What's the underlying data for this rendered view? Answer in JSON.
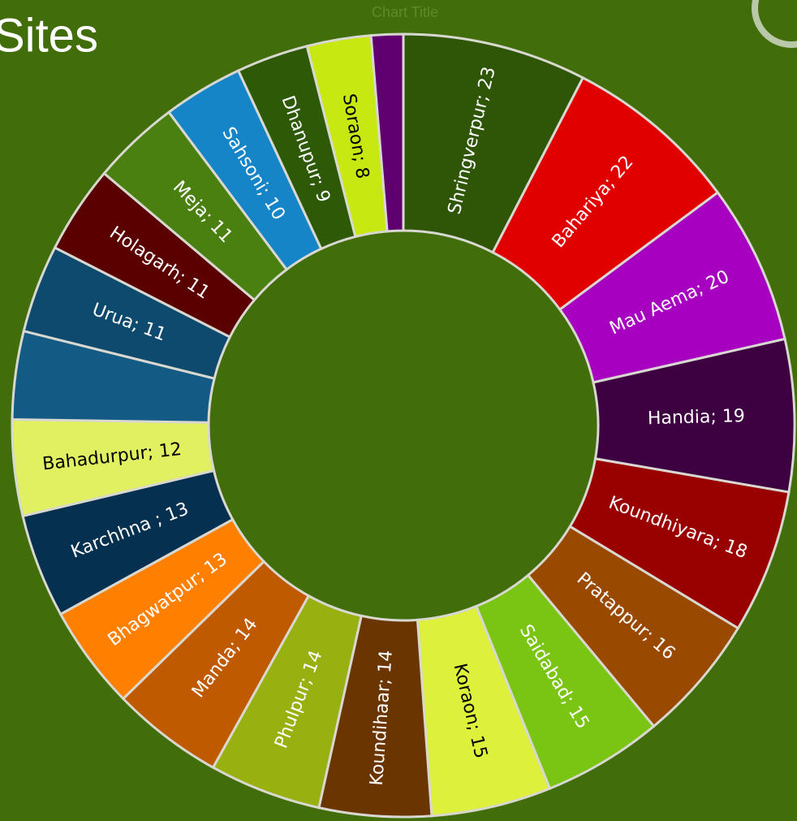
{
  "chart_data": {
    "type": "doughnut",
    "title": "Sites",
    "subtitle": "Chart Title",
    "categories": [
      "Shringverpur",
      "Bahariya",
      "Mau Aema",
      "Handia",
      "Koundhiyara",
      "Pratappur",
      "Saidabad",
      "Koraon",
      "Koundihaar",
      "Phulpur",
      "Manda",
      "Bhagwatpur",
      "Karchhna",
      "Bahadurpur",
      null,
      "Urua",
      "Holagarh",
      "Meja",
      "Sahsoni",
      "Dhanupur",
      "Soraon",
      null
    ],
    "values": [
      23,
      22,
      20,
      19,
      18,
      16,
      15,
      15,
      14,
      14,
      14,
      13,
      13,
      12,
      11,
      11,
      11,
      11,
      10,
      9,
      8,
      4
    ],
    "value_labels": [
      "Shringverpur; 23",
      "Bahariya; 22",
      "Mau Aema; 20",
      "Handia; 19",
      "Koundhiyara; 18",
      "Pratappur; 16",
      "Saidabad; 15",
      "Koraon; 15",
      "Koundihaar; 14",
      "Phulpur; 14",
      "Manda; 14",
      "Bhagwatpur; 13",
      "Karchhna ; 13",
      "Bahadurpur; 12",
      null,
      "Urua; 11",
      "Holagarh; 11",
      "Meja; 11",
      "Sahsoni; 10",
      "Dhanupur; 9",
      "Soraon; 8",
      null
    ],
    "colors": [
      "#2f5507",
      "#e00000",
      "#a800c0",
      "#3d0040",
      "#990000",
      "#9a4a00",
      "#7ac414",
      "#dcf03c",
      "#6b3500",
      "#98b010",
      "#c05a00",
      "#ff7f00",
      "#063050",
      "#e0f060",
      "#135b85",
      "#0d4a6e",
      "#5a0000",
      "#4a8010",
      "#1585c8",
      "#2e5a08",
      "#c8e812",
      "#600070"
    ],
    "label_colors": [
      "#fff",
      "#fff",
      "#fff",
      "#fff",
      "#fff",
      "#fff",
      "#fff",
      "#000",
      "#fff",
      "#fff",
      "#fff",
      "#fff",
      "#fff",
      "#000",
      "#fff",
      "#fff",
      "#fff",
      "#fff",
      "#fff",
      "#fff",
      "#000",
      "#fff"
    ]
  }
}
